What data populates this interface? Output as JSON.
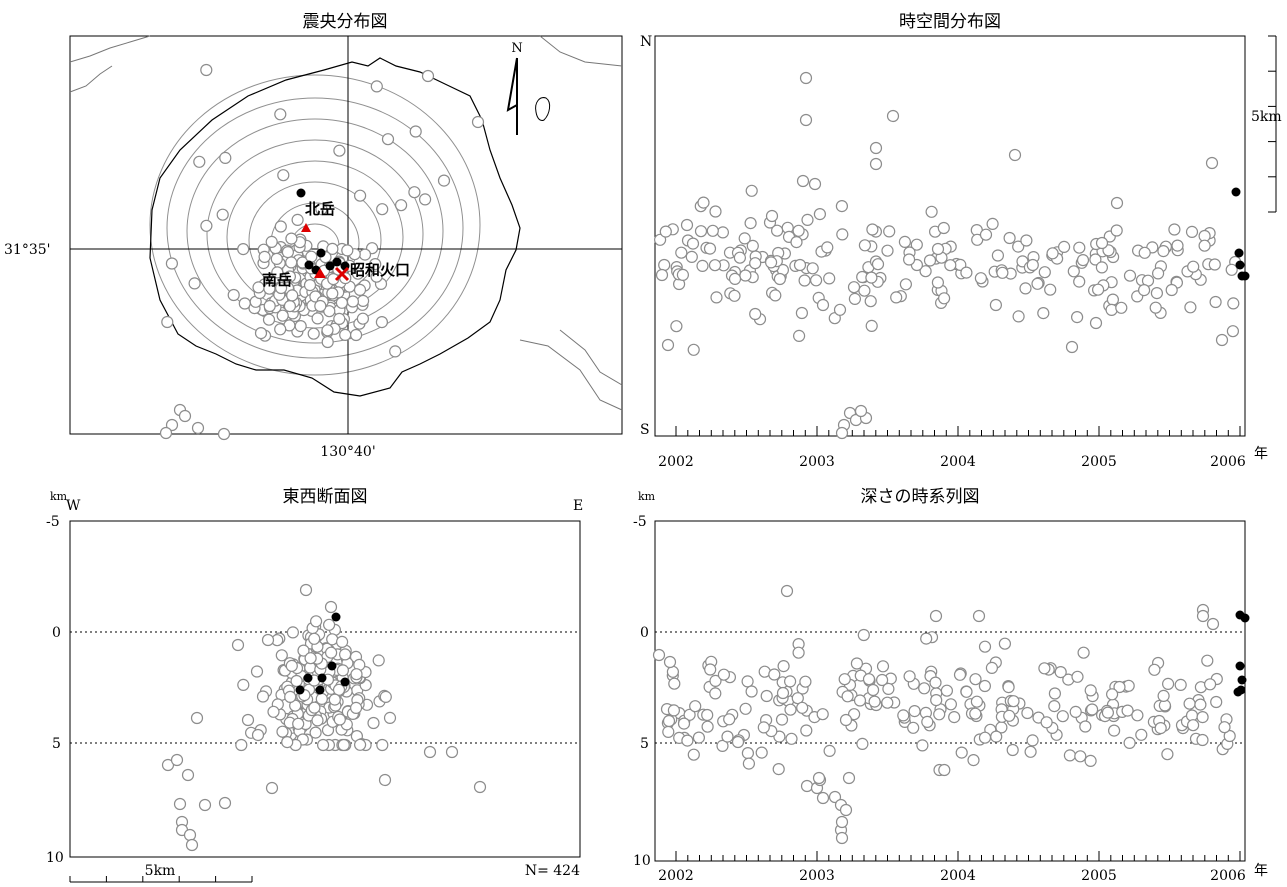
{
  "colors": {
    "marker_open_fill": "#ffffff",
    "marker_open_stroke": "#8c8c8c",
    "marker_recent": "#000000",
    "peak_marker": "#dd0000",
    "contour": "#909090",
    "coast": "#000000"
  },
  "map": {
    "title": "震央分布図",
    "lat_label": "31°35'",
    "lon_label": "130°40'",
    "north_label": "N",
    "labels": {
      "kitadake": "北岳",
      "minamidake": "南岳",
      "showa": "昭和火口"
    }
  },
  "timespace": {
    "title": "時空間分布図",
    "north": "N",
    "south": "S",
    "scale_label": "5km",
    "year_unit": "年",
    "years": [
      "2002",
      "2003",
      "2004",
      "2005",
      "2006"
    ]
  },
  "ew": {
    "title": "東西断面図",
    "unit": "km",
    "west": "W",
    "east": "E",
    "depth_ticks": [
      "-5",
      "0",
      "5",
      "10"
    ],
    "scale_label": "5km",
    "count_label": "N= 424"
  },
  "depth": {
    "title": "深さの時系列図",
    "unit": "km",
    "depth_ticks": [
      "-5",
      "0",
      "5",
      "10"
    ],
    "year_unit": "年",
    "years": [
      "2002",
      "2003",
      "2004",
      "2005",
      "2006"
    ]
  },
  "chart_data": [
    {
      "type": "scatter",
      "title": "震央分布図",
      "total_events": 424
    },
    {
      "type": "scatter",
      "title": "時空間分布図",
      "x": "time",
      "y": "N-S position",
      "x_range": [
        "2002",
        "2006"
      ]
    },
    {
      "type": "scatter",
      "title": "東西断面図",
      "y": "depth (km)",
      "ylim": [
        -5,
        10
      ],
      "reference_depths": [
        0,
        5
      ],
      "count": 424
    },
    {
      "type": "scatter",
      "title": "深さの時系列図",
      "y": "depth (km)",
      "ylim": [
        -5,
        10
      ],
      "reference_depths": [
        0,
        5
      ],
      "x_range": [
        "2002",
        "2006"
      ]
    }
  ]
}
